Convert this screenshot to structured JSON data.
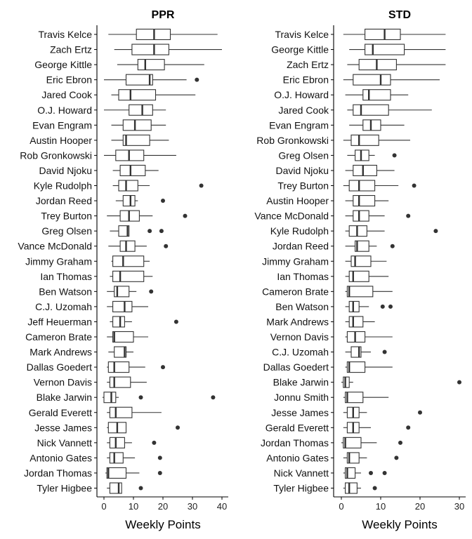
{
  "chart_data": [
    {
      "type": "boxplot",
      "title": "PPR",
      "xlabel": "Weekly Points",
      "xlim": [
        -1.5,
        42
      ],
      "xticks": [
        0,
        10,
        20,
        30,
        40
      ],
      "categories": [
        "Travis Kelce",
        "Zach Ertz",
        "George Kittle",
        "Eric Ebron",
        "Jared Cook",
        "O.J. Howard",
        "Evan Engram",
        "Austin Hooper",
        "Rob Gronkowski",
        "David Njoku",
        "Kyle Rudolph",
        "Jordan Reed",
        "Trey Burton",
        "Greg Olsen",
        "Vance McDonald",
        "Jimmy Graham",
        "Ian Thomas",
        "Ben Watson",
        "C.J. Uzomah",
        "Jeff Heuerman",
        "Cameron Brate",
        "Mark Andrews",
        "Dallas Goedert",
        "Vernon Davis",
        "Blake Jarwin",
        "Gerald Everett",
        "Jesse James",
        "Nick Vannett",
        "Antonio Gates",
        "Jordan Thomas",
        "Tyler Higbee"
      ],
      "boxes": [
        {
          "min": 1.5,
          "q1": 11,
          "median": 17,
          "q3": 22.5,
          "max": 38.5,
          "outliers": []
        },
        {
          "min": 3.5,
          "q1": 9.5,
          "median": 17,
          "q3": 22,
          "max": 40,
          "outliers": []
        },
        {
          "min": 4.5,
          "q1": 11.5,
          "median": 14,
          "q3": 20.5,
          "max": 34,
          "outliers": []
        },
        {
          "min": 0,
          "q1": 7.5,
          "median": 15.5,
          "q3": 16.5,
          "max": 28,
          "outliers": [
            31.5
          ]
        },
        {
          "min": 2.5,
          "q1": 5,
          "median": 9,
          "q3": 17.5,
          "max": 31,
          "outliers": []
        },
        {
          "min": 0,
          "q1": 8.5,
          "median": 13,
          "q3": 16.5,
          "max": 21,
          "outliers": []
        },
        {
          "min": 2.5,
          "q1": 6.5,
          "median": 10.5,
          "q3": 16,
          "max": 21,
          "outliers": []
        },
        {
          "min": 2.5,
          "q1": 6.5,
          "median": 7.5,
          "q3": 15.5,
          "max": 22,
          "outliers": []
        },
        {
          "min": 0,
          "q1": 4,
          "median": 8.5,
          "q3": 13.5,
          "max": 24.5,
          "outliers": []
        },
        {
          "min": 3,
          "q1": 5.5,
          "median": 9,
          "q3": 14,
          "max": 18.5,
          "outliers": []
        },
        {
          "min": 3,
          "q1": 5,
          "median": 7.5,
          "q3": 11.5,
          "max": 15.5,
          "outliers": [
            33
          ]
        },
        {
          "min": 4,
          "q1": 6.5,
          "median": 9,
          "q3": 10.5,
          "max": 11.5,
          "outliers": [
            20
          ]
        },
        {
          "min": 1,
          "q1": 5.5,
          "median": 8.5,
          "q3": 12,
          "max": 16.5,
          "outliers": [
            27.5
          ]
        },
        {
          "min": 2,
          "q1": 5,
          "median": 8,
          "q3": 8.5,
          "max": 8.5,
          "outliers": [
            15.5,
            19.5
          ]
        },
        {
          "min": 1.5,
          "q1": 5.5,
          "median": 7.5,
          "q3": 10.5,
          "max": 14.5,
          "outliers": [
            21
          ]
        },
        {
          "min": 2.5,
          "q1": 3,
          "median": 6.5,
          "q3": 13.5,
          "max": 15.5,
          "outliers": []
        },
        {
          "min": 2,
          "q1": 3,
          "median": 5.5,
          "q3": 13.5,
          "max": 16.5,
          "outliers": []
        },
        {
          "min": 1,
          "q1": 3.5,
          "median": 4.5,
          "q3": 8.5,
          "max": 11,
          "outliers": [
            16
          ]
        },
        {
          "min": 1,
          "q1": 3,
          "median": 7,
          "q3": 9.5,
          "max": 15,
          "outliers": []
        },
        {
          "min": 2,
          "q1": 3,
          "median": 5.5,
          "q3": 7,
          "max": 9.5,
          "outliers": [
            24.5
          ]
        },
        {
          "min": 1,
          "q1": 3,
          "median": 3.5,
          "q3": 10,
          "max": 15,
          "outliers": []
        },
        {
          "min": 1.5,
          "q1": 3.5,
          "median": 7,
          "q3": 7.5,
          "max": 10,
          "outliers": []
        },
        {
          "min": 1,
          "q1": 1.5,
          "median": 3.5,
          "q3": 8.5,
          "max": 14,
          "outliers": [
            20
          ]
        },
        {
          "min": 1,
          "q1": 2,
          "median": 3.5,
          "q3": 9,
          "max": 14.5,
          "outliers": []
        },
        {
          "min": -0.5,
          "q1": 0,
          "median": 2.5,
          "q3": 4,
          "max": 5,
          "outliers": [
            12.5,
            37
          ]
        },
        {
          "min": 1,
          "q1": 2,
          "median": 4,
          "q3": 9.5,
          "max": 19.5,
          "outliers": []
        },
        {
          "min": 1,
          "q1": 1.5,
          "median": 4.5,
          "q3": 7.5,
          "max": 7.5,
          "outliers": [
            25
          ]
        },
        {
          "min": 1,
          "q1": 2,
          "median": 4,
          "q3": 7,
          "max": 9.5,
          "outliers": [
            17
          ]
        },
        {
          "min": 1,
          "q1": 2,
          "median": 3.5,
          "q3": 6.5,
          "max": 10.5,
          "outliers": [
            19
          ]
        },
        {
          "min": 0.5,
          "q1": 1,
          "median": 1.5,
          "q3": 7.5,
          "max": 12,
          "outliers": [
            19
          ]
        },
        {
          "min": 1,
          "q1": 2,
          "median": 5,
          "q3": 6,
          "max": 6,
          "outliers": [
            12.5
          ]
        }
      ]
    },
    {
      "type": "boxplot",
      "title": "STD",
      "xlabel": "Weekly Points",
      "xlim": [
        -1.5,
        31
      ],
      "xticks": [
        0,
        10,
        20,
        30
      ],
      "categories": [
        "Travis Kelce",
        "George Kittle",
        "Zach Ertz",
        "Eric Ebron",
        "O.J. Howard",
        "Jared Cook",
        "Evan Engram",
        "Rob Gronkowski",
        "Greg Olsen",
        "David Njoku",
        "Trey Burton",
        "Austin Hooper",
        "Vance McDonald",
        "Kyle Rudolph",
        "Jordan Reed",
        "Jimmy Graham",
        "Ian Thomas",
        "Cameron Brate",
        "Ben Watson",
        "Mark Andrews",
        "Vernon Davis",
        "C.J. Uzomah",
        "Dallas Goedert",
        "Blake Jarwin",
        "Jonnu Smith",
        "Jesse James",
        "Gerald Everett",
        "Jordan Thomas",
        "Antonio Gates",
        "Nick Vannett",
        "Tyler Higbee"
      ],
      "boxes": [
        {
          "min": 0.5,
          "q1": 6,
          "median": 11,
          "q3": 15,
          "max": 26.5,
          "outliers": []
        },
        {
          "min": 2,
          "q1": 6,
          "median": 8,
          "q3": 16,
          "max": 26.5,
          "outliers": []
        },
        {
          "min": 1.5,
          "q1": 4.5,
          "median": 9,
          "q3": 14,
          "max": 26.5,
          "outliers": []
        },
        {
          "min": 0.5,
          "q1": 3,
          "median": 10,
          "q3": 12.5,
          "max": 25,
          "outliers": []
        },
        {
          "min": 1,
          "q1": 5.5,
          "median": 7,
          "q3": 12.5,
          "max": 17,
          "outliers": []
        },
        {
          "min": 1.5,
          "q1": 3,
          "median": 5,
          "q3": 12,
          "max": 23,
          "outliers": []
        },
        {
          "min": 2,
          "q1": 5.5,
          "median": 7.5,
          "q3": 10,
          "max": 16,
          "outliers": []
        },
        {
          "min": 0.5,
          "q1": 2.5,
          "median": 4.5,
          "q3": 9.5,
          "max": 17.5,
          "outliers": []
        },
        {
          "min": 1.5,
          "q1": 3.5,
          "median": 5,
          "q3": 7,
          "max": 8.5,
          "outliers": [
            13.5
          ]
        },
        {
          "min": 1,
          "q1": 3,
          "median": 5.5,
          "q3": 9,
          "max": 13.5,
          "outliers": []
        },
        {
          "min": 0.5,
          "q1": 2,
          "median": 4.5,
          "q3": 8.5,
          "max": 14.5,
          "outliers": [
            18.5
          ]
        },
        {
          "min": 1,
          "q1": 3,
          "median": 4.5,
          "q3": 8.5,
          "max": 12,
          "outliers": []
        },
        {
          "min": 1,
          "q1": 3,
          "median": 4.5,
          "q3": 7,
          "max": 11,
          "outliers": [
            17
          ]
        },
        {
          "min": 1,
          "q1": 2,
          "median": 4,
          "q3": 6.5,
          "max": 11,
          "outliers": [
            24
          ]
        },
        {
          "min": 1,
          "q1": 3.5,
          "median": 4,
          "q3": 7,
          "max": 9,
          "outliers": [
            13
          ]
        },
        {
          "min": 1,
          "q1": 2.5,
          "median": 3.5,
          "q3": 7.5,
          "max": 11.5,
          "outliers": []
        },
        {
          "min": 1,
          "q1": 2,
          "median": 3,
          "q3": 7,
          "max": 12,
          "outliers": []
        },
        {
          "min": 1,
          "q1": 1.5,
          "median": 2,
          "q3": 8,
          "max": 13,
          "outliers": []
        },
        {
          "min": 1,
          "q1": 2,
          "median": 3,
          "q3": 4.5,
          "max": 7,
          "outliers": [
            10.5,
            12.5
          ]
        },
        {
          "min": 1,
          "q1": 2,
          "median": 3,
          "q3": 5.5,
          "max": 8.5,
          "outliers": []
        },
        {
          "min": 1,
          "q1": 1.5,
          "median": 3.5,
          "q3": 6,
          "max": 13,
          "outliers": []
        },
        {
          "min": 1,
          "q1": 2.5,
          "median": 4.5,
          "q3": 5,
          "max": 7.5,
          "outliers": [
            11
          ]
        },
        {
          "min": 1,
          "q1": 1.5,
          "median": 2,
          "q3": 6,
          "max": 13,
          "outliers": []
        },
        {
          "min": 0,
          "q1": 0.5,
          "median": 1,
          "q3": 2,
          "max": 3,
          "outliers": [
            30
          ]
        },
        {
          "min": 0.5,
          "q1": 1,
          "median": 1.5,
          "q3": 5.5,
          "max": 12,
          "outliers": []
        },
        {
          "min": 0.5,
          "q1": 1.5,
          "median": 3,
          "q3": 4.5,
          "max": 6.5,
          "outliers": [
            20
          ]
        },
        {
          "min": 0.5,
          "q1": 1.5,
          "median": 3,
          "q3": 4.5,
          "max": 7.5,
          "outliers": [
            17
          ]
        },
        {
          "min": 0,
          "q1": 0.5,
          "median": 1,
          "q3": 5,
          "max": 9,
          "outliers": [
            15
          ]
        },
        {
          "min": 0.5,
          "q1": 1.5,
          "median": 2,
          "q3": 4.5,
          "max": 6.5,
          "outliers": [
            14
          ]
        },
        {
          "min": 0.5,
          "q1": 1,
          "median": 1.5,
          "q3": 3.5,
          "max": 5,
          "outliers": [
            7.5,
            11
          ]
        },
        {
          "min": 0.5,
          "q1": 1,
          "median": 2,
          "q3": 4,
          "max": 5,
          "outliers": [
            8.5
          ]
        }
      ]
    }
  ]
}
